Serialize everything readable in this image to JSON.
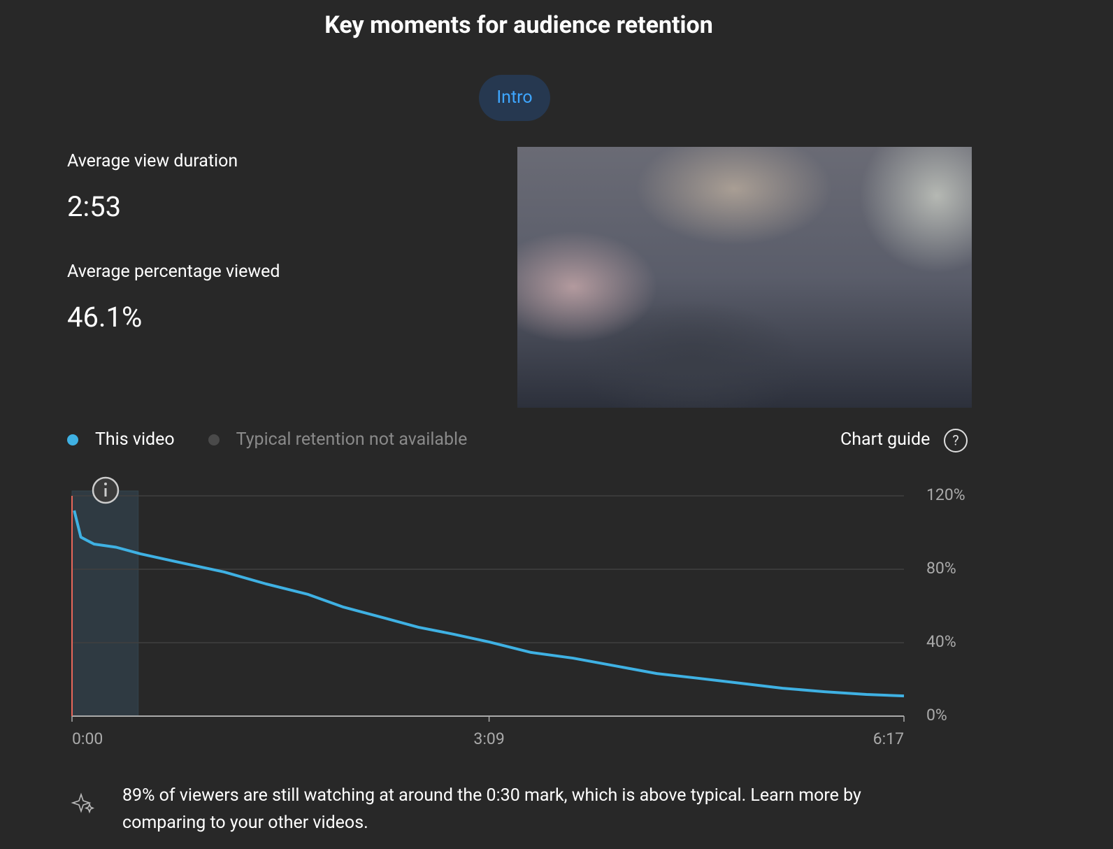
{
  "title": "Key moments for audience retention",
  "tab": "Intro",
  "stats": [
    {
      "label": "Average view duration",
      "value": "2:53"
    },
    {
      "label": "Average percentage viewed",
      "value": "46.1%"
    }
  ],
  "typical_legend": "Typical retention not available",
  "chart_guide": "Chart guide",
  "chart_data": {
    "type": "line",
    "x": [
      1,
      4,
      10,
      20,
      31,
      50,
      69,
      88,
      107,
      123,
      142,
      157,
      173,
      189,
      208,
      227,
      246,
      265,
      284,
      303,
      322,
      341,
      360,
      377
    ],
    "series": [
      {
        "name": "This video",
        "color": "#3fb1e3",
        "values": [
          112,
          97.5,
          93.7,
          92,
          88.4,
          83.4,
          78.5,
          72,
          66.3,
          59.4,
          53.3,
          48.4,
          44.6,
          40.4,
          34.7,
          31.6,
          27.4,
          23.2,
          20.6,
          17.9,
          15.2,
          13.3,
          11.8,
          11
        ]
      }
    ],
    "highlight": [
      0,
      30
    ],
    "xlim": [
      0,
      377
    ],
    "xticks": [
      {
        "value": 0,
        "label": "0:00"
      },
      {
        "value": 189,
        "label": "3:09"
      },
      {
        "value": 377,
        "label": "6:17"
      }
    ],
    "ylim": [
      0,
      120
    ],
    "yticks": [
      {
        "value": 0,
        "label": "0%"
      },
      {
        "value": 40,
        "label": "40%"
      },
      {
        "value": 80,
        "label": "80%"
      },
      {
        "value": 120,
        "label": "120%"
      }
    ],
    "grid": true
  },
  "insight": "89% of viewers are still watching at around the 0:30 mark, which is above typical. Learn more by comparing to your other videos."
}
